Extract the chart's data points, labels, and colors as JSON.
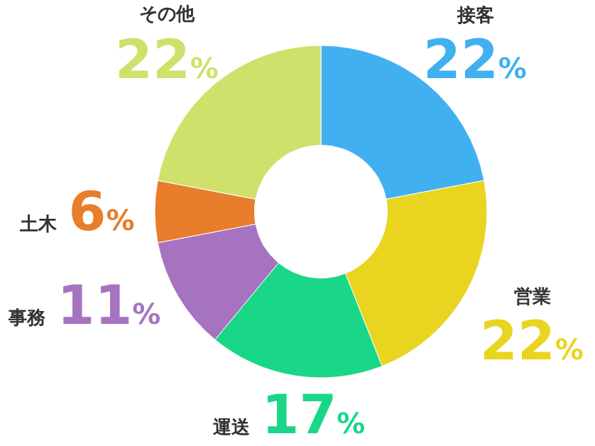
{
  "chart_data": {
    "type": "donut",
    "categories": [
      "接客",
      "営業",
      "運送",
      "事務",
      "土木",
      "その他"
    ],
    "values": [
      22,
      22,
      17,
      11,
      6,
      22
    ],
    "colors": [
      "#41b0f0",
      "#e9d420",
      "#1ad787",
      "#a673c0",
      "#e87d2b",
      "#cfe16b"
    ],
    "value_labels": [
      "22%",
      "22%",
      "17%",
      "11%",
      "6%",
      "22%"
    ],
    "legend": false
  }
}
